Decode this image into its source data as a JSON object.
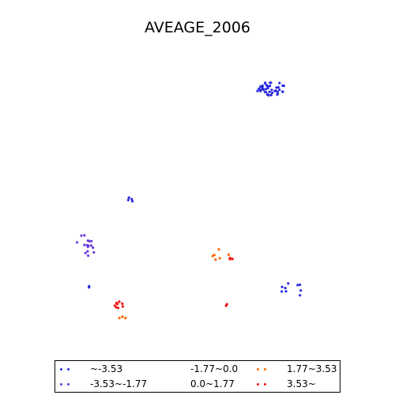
{
  "chart_data": {
    "type": "scatter",
    "title": "AVEAGE_2006",
    "legend_position": "bottom",
    "classes": [
      {
        "label": "~-3.53",
        "color": "#2b2be0"
      },
      {
        "label": "-3.53~-1.77",
        "color": "#6a3be0"
      },
      {
        "label": "-1.77~0.0",
        "color": "#ffffff"
      },
      {
        "label": "0.0~1.77",
        "color": "#ffffff"
      },
      {
        "label": "1.77~3.53",
        "color": "#ff6600"
      },
      {
        "label": "3.53~",
        "color": "#ee1111"
      }
    ],
    "clusters": [
      {
        "class": 0,
        "count": 45
      },
      {
        "class": 0,
        "count": 5
      },
      {
        "class": 1,
        "count": 16
      },
      {
        "class": 0,
        "count": 2
      },
      {
        "class": 4,
        "count": 6
      },
      {
        "class": 5,
        "count": 3
      },
      {
        "class": 0,
        "count": 9
      },
      {
        "class": 5,
        "count": 2
      },
      {
        "class": 5,
        "count": 8
      },
      {
        "class": 4,
        "count": 4
      }
    ]
  }
}
